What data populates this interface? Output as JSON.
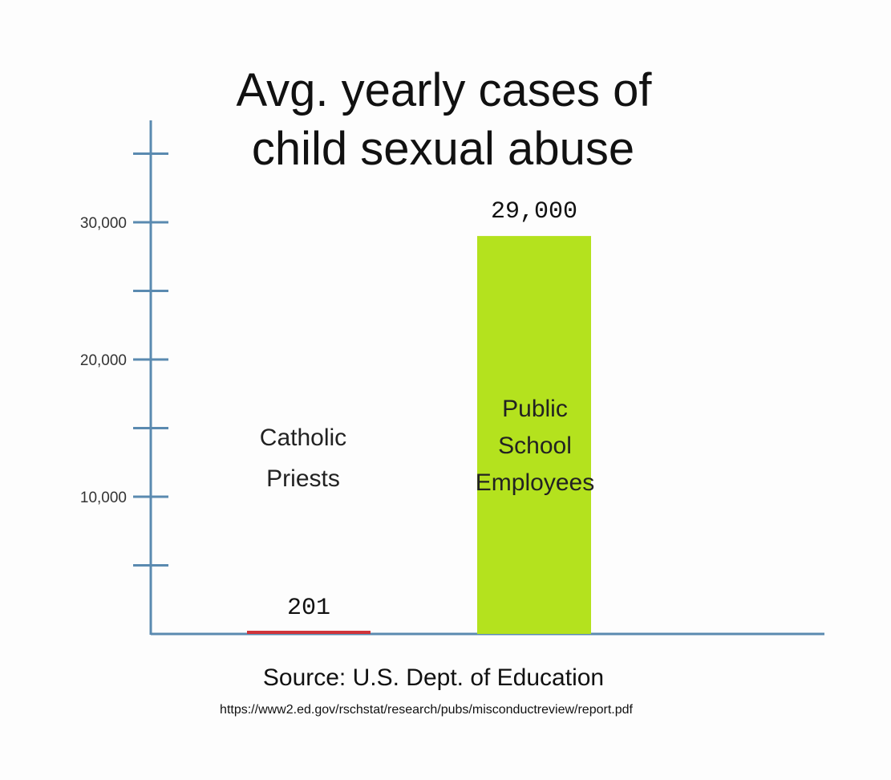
{
  "chart_data": {
    "type": "bar",
    "title_lines": [
      "Avg. yearly cases of",
      "child sexual abuse"
    ],
    "categories": [
      "Catholic Priests",
      "Public School Employees"
    ],
    "category_label_lines": [
      [
        "Catholic",
        "Priests"
      ],
      [
        "Public",
        "School",
        "Employees"
      ]
    ],
    "values": [
      201,
      29000
    ],
    "value_labels": [
      "201",
      "29,000"
    ],
    "ylim": [
      0,
      30000
    ],
    "y_tick_labels": [
      "10,000",
      "20,000",
      "30,000"
    ],
    "colors": [
      "#d0343a",
      "#b4e21e"
    ],
    "axis_color": "#5a8ab0",
    "grid": false
  },
  "source": {
    "text": "Source: U.S. Dept. of Education",
    "url": "https://www2.ed.gov/rschstat/research/pubs/misconductreview/report.pdf"
  }
}
